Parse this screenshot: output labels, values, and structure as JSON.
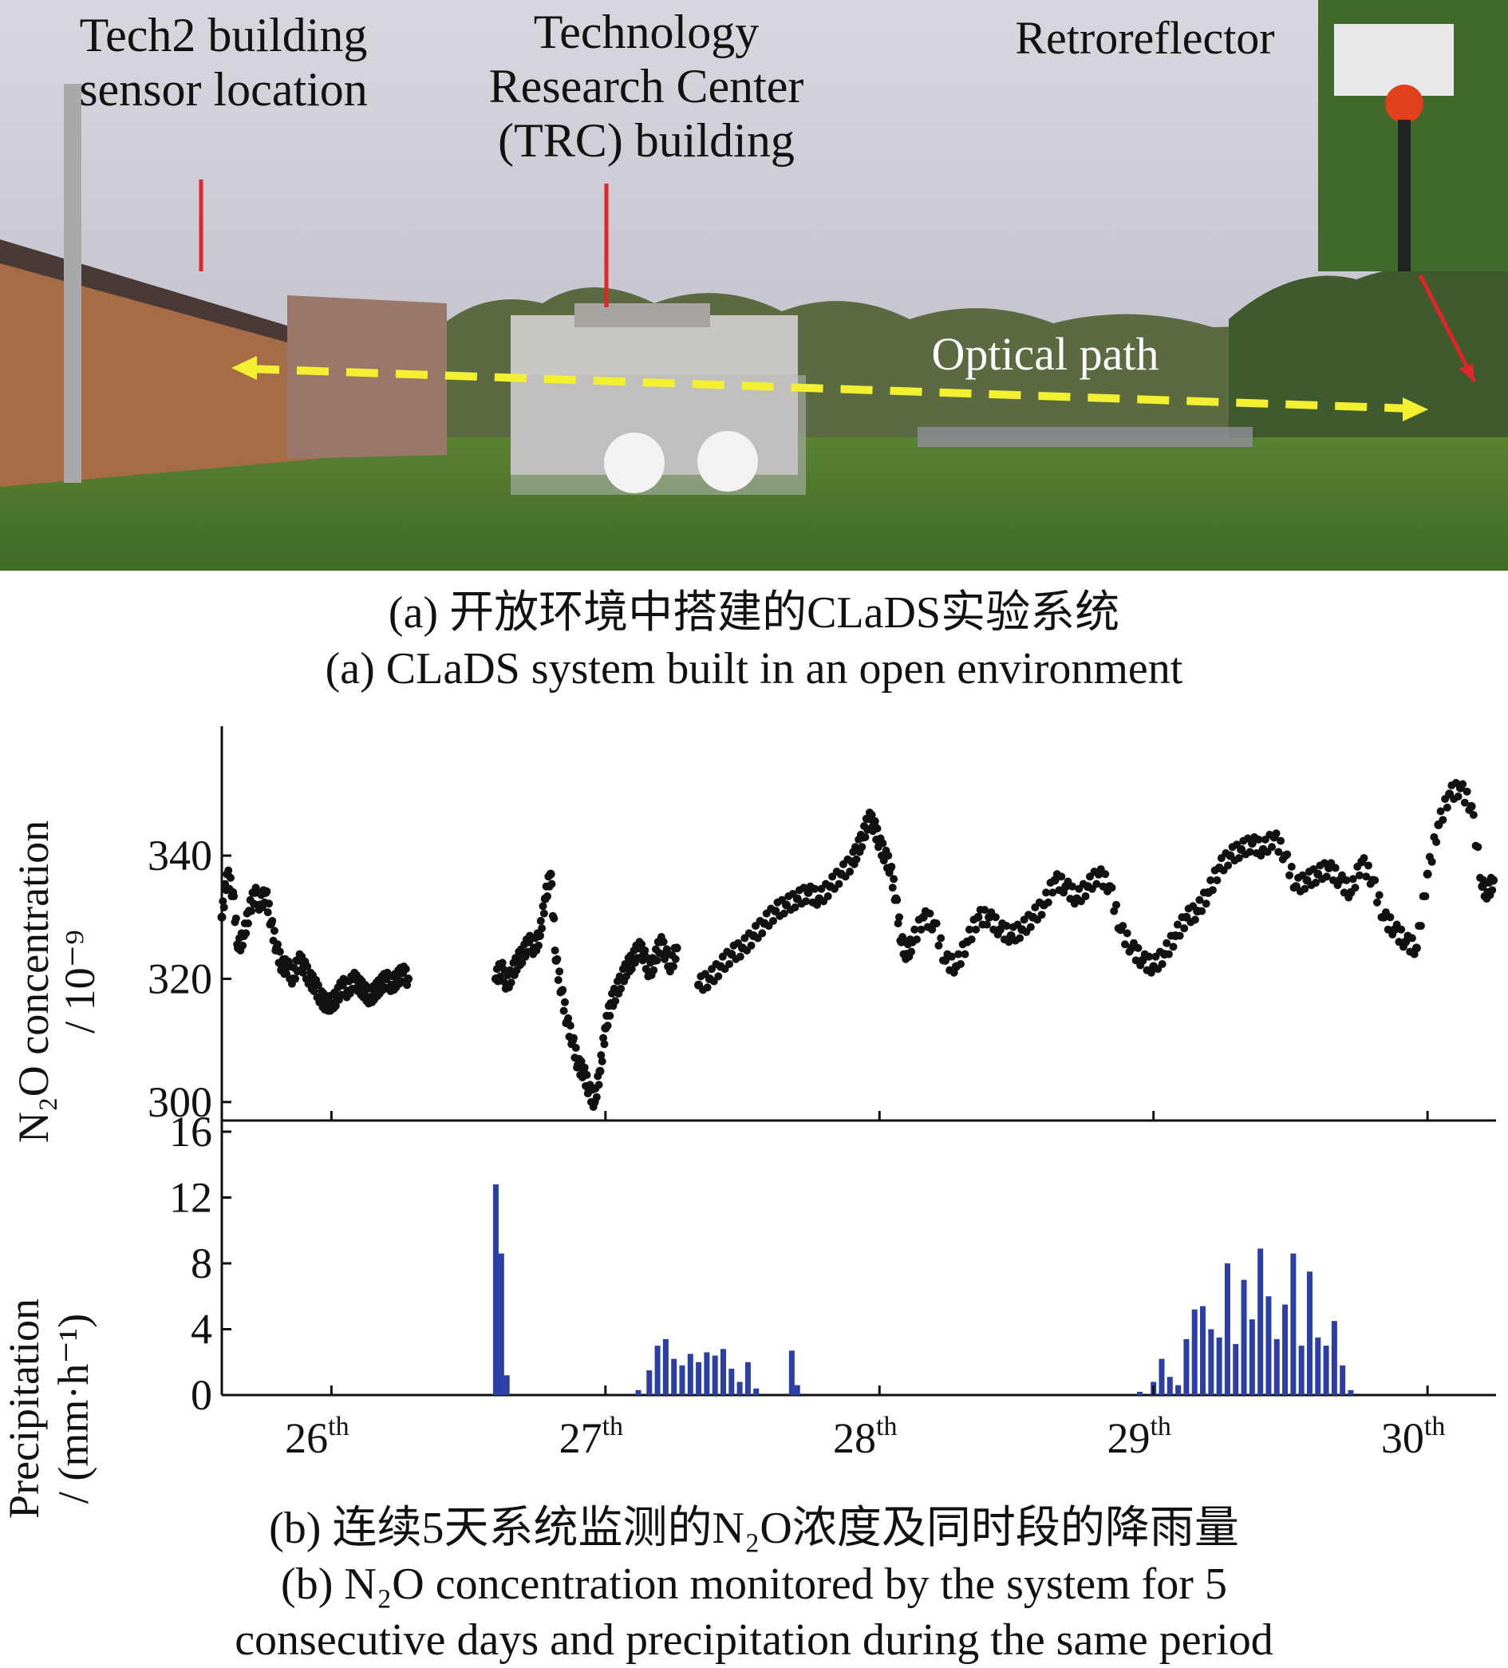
{
  "photo": {
    "labels": {
      "tech2": "Tech2 building sensor location",
      "trc": "Technology Research Center (TRC) building",
      "retroreflector": "Retroreflector",
      "optical_path": "Optical path"
    },
    "colors": {
      "sky": "#c9c9d3",
      "grass": "#4c7a2e",
      "building_brick": "#a06a45",
      "indicator_line": "#e0262a",
      "optical_path": "#f3f032"
    }
  },
  "captions": {
    "a_zh": "(a) 开放环境中搭建的CLaDS实验系统",
    "a_en": "(a) CLaDS system built in an open environment",
    "b_zh": "(b) 连续5天系统监测的N₂O浓度及同时段的降雨量",
    "b_en_line1": "(b) N₂O concentration monitored by the system for 5",
    "b_en_line2": "consecutive days and precipitation during the same period"
  },
  "chart_data": [
    {
      "type": "scatter",
      "panel": "top",
      "ylabel_line1": "N₂O concentration",
      "ylabel_line2": "/ 10⁻⁹",
      "yticks": [
        "300",
        "320",
        "340"
      ],
      "ylim": [
        297,
        361
      ],
      "xlim": [
        25.6,
        30.25
      ],
      "color": "#111111",
      "series": [
        {
          "x": [
            25.6,
            25.62,
            25.64,
            25.66,
            25.68,
            25.7,
            25.72,
            25.74,
            25.76,
            25.78,
            25.8,
            25.82,
            25.84,
            25.86,
            25.88,
            25.9,
            25.92,
            25.94,
            25.96,
            25.98,
            26.0,
            26.02,
            26.04,
            26.06,
            26.08,
            26.1,
            26.12,
            26.14,
            26.16,
            26.18,
            26.2,
            26.22,
            26.24,
            26.26,
            26.28
          ],
          "y": [
            330,
            337,
            334,
            325,
            327,
            331,
            334,
            332,
            334,
            329,
            325,
            322,
            322,
            320,
            323,
            322,
            320,
            319,
            317,
            316,
            316,
            317,
            319,
            318,
            320,
            319,
            318,
            317,
            318,
            319,
            320,
            319,
            320,
            321,
            320
          ]
        },
        {
          "x": [
            26.6,
            26.62,
            26.64,
            26.66,
            26.68,
            26.7,
            26.72,
            26.74,
            26.76,
            26.78,
            26.8,
            26.82,
            26.84,
            26.86,
            26.88,
            26.9,
            26.92,
            26.94,
            26.96,
            26.98,
            27.0,
            27.02,
            27.04,
            27.06,
            27.08,
            27.1,
            27.12,
            27.14,
            27.16,
            27.18,
            27.2,
            27.22,
            27.24,
            27.26
          ],
          "y": [
            320,
            322,
            319,
            321,
            323,
            324,
            326,
            325,
            327,
            333,
            337,
            323,
            318,
            313,
            310,
            306,
            305,
            302,
            300,
            305,
            312,
            316,
            318,
            320,
            322,
            323,
            325,
            324,
            321,
            323,
            326,
            324,
            322,
            325
          ]
        },
        {
          "x": [
            27.34,
            27.38,
            27.42,
            27.46,
            27.5,
            27.54,
            27.58,
            27.62,
            27.66,
            27.7,
            27.74,
            27.78,
            27.82,
            27.86,
            27.9,
            27.92,
            27.94,
            27.96,
            27.98,
            28.0,
            28.02,
            28.04,
            28.06,
            28.08,
            28.1,
            28.12,
            28.16,
            28.2,
            28.24,
            28.28,
            28.32,
            28.36,
            28.4,
            28.44,
            28.48,
            28.52,
            28.56,
            28.6,
            28.64,
            28.68,
            28.72,
            28.76,
            28.8,
            28.84,
            28.88,
            28.92,
            28.96,
            29.0,
            29.04,
            29.08,
            29.12,
            29.16,
            29.2,
            29.24,
            29.28,
            29.32,
            29.36,
            29.4,
            29.44,
            29.48,
            29.52,
            29.56,
            29.6,
            29.64,
            29.68,
            29.72,
            29.76,
            29.8,
            29.84,
            29.88,
            29.92,
            29.96,
            30.0,
            30.04,
            30.08,
            30.12,
            30.16,
            30.2,
            30.22,
            30.24
          ],
          "y": [
            319,
            320,
            322,
            324,
            325,
            327,
            329,
            331,
            332,
            333,
            334,
            333,
            335,
            337,
            339,
            341,
            343,
            346,
            345,
            342,
            340,
            338,
            333,
            326,
            324,
            326,
            330,
            329,
            323,
            322,
            326,
            330,
            330,
            328,
            327,
            328,
            330,
            332,
            336,
            335,
            333,
            335,
            337,
            335,
            328,
            325,
            323,
            322,
            324,
            327,
            330,
            331,
            334,
            338,
            340,
            341,
            342,
            341,
            343,
            340,
            335,
            336,
            337,
            338,
            336,
            334,
            339,
            336,
            330,
            328,
            326,
            325,
            337,
            345,
            350,
            351,
            348,
            335,
            334,
            336
          ]
        }
      ]
    },
    {
      "type": "bar",
      "panel": "bottom",
      "ylabel_line1": "Precipitation",
      "ylabel_line2": "/ (mm·h⁻¹)",
      "yticks": [
        "0",
        "4",
        "8",
        "12",
        "16"
      ],
      "ylim": [
        0,
        16
      ],
      "xlim": [
        25.6,
        30.25
      ],
      "color": "#2b3fa6",
      "x": [
        26.6,
        26.62,
        26.64,
        27.12,
        27.16,
        27.19,
        27.22,
        27.25,
        27.28,
        27.31,
        27.34,
        27.37,
        27.4,
        27.43,
        27.46,
        27.49,
        27.52,
        27.55,
        27.68,
        27.7,
        28.95,
        29.0,
        29.03,
        29.06,
        29.09,
        29.12,
        29.15,
        29.18,
        29.21,
        29.24,
        29.27,
        29.3,
        29.33,
        29.36,
        29.39,
        29.42,
        29.45,
        29.48,
        29.51,
        29.54,
        29.57,
        29.6,
        29.63,
        29.66,
        29.69,
        29.72
      ],
      "values": [
        12.8,
        8.6,
        1.2,
        0.3,
        1.5,
        3.0,
        3.4,
        2.2,
        1.8,
        2.5,
        2.0,
        2.6,
        2.4,
        2.8,
        1.6,
        0.8,
        2.0,
        0.4,
        2.7,
        0.6,
        0.2,
        0.8,
        2.2,
        1.1,
        0.6,
        3.4,
        5.2,
        5.4,
        4.0,
        3.5,
        8.0,
        3.1,
        7.0,
        4.6,
        8.9,
        6.0,
        3.4,
        5.5,
        8.6,
        3.0,
        7.5,
        3.5,
        3.0,
        4.5,
        1.8,
        0.3
      ]
    }
  ],
  "x_axis": {
    "ticks": [
      26,
      27,
      28,
      29,
      30
    ],
    "tick_labels": [
      {
        "num": "26",
        "sup": "th"
      },
      {
        "num": "27",
        "sup": "th"
      },
      {
        "num": "28",
        "sup": "th"
      },
      {
        "num": "29",
        "sup": "th"
      },
      {
        "num": "30",
        "sup": "th"
      }
    ]
  }
}
